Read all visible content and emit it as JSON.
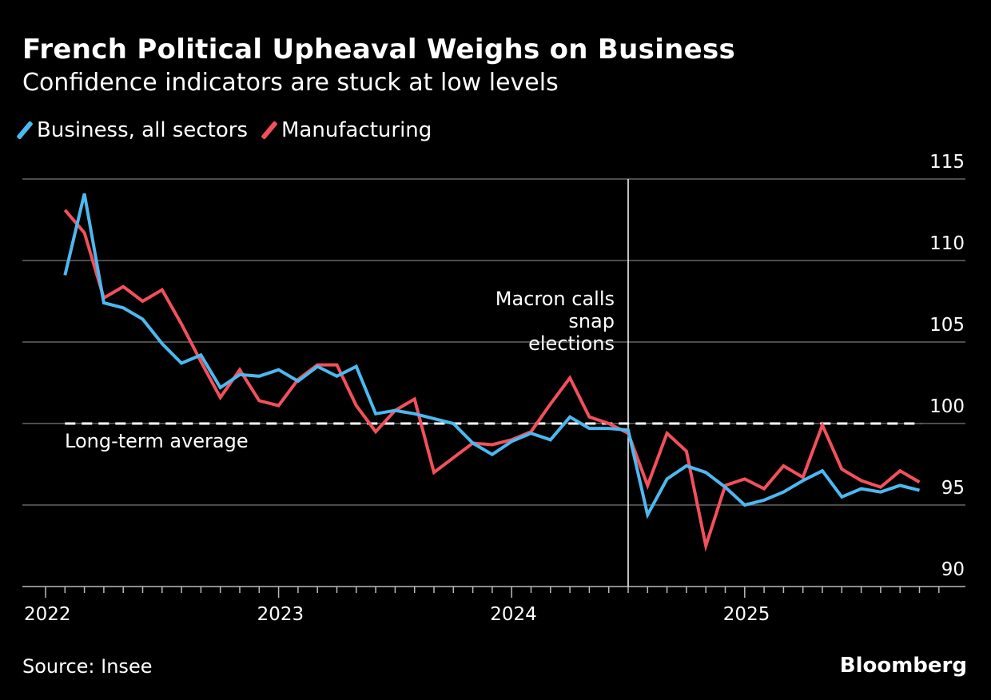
{
  "chart_data": {
    "type": "line",
    "title": "French Political Upheaval Weighs on Business",
    "subtitle": "Confidence indicators are stuck at low levels",
    "x": [
      "2022-02",
      "2022-03",
      "2022-04",
      "2022-05",
      "2022-06",
      "2022-07",
      "2022-08",
      "2022-09",
      "2022-10",
      "2022-11",
      "2022-12",
      "2023-01",
      "2023-02",
      "2023-03",
      "2023-04",
      "2023-05",
      "2023-06",
      "2023-07",
      "2023-08",
      "2023-09",
      "2023-10",
      "2023-11",
      "2023-12",
      "2024-01",
      "2024-02",
      "2024-03",
      "2024-04",
      "2024-05",
      "2024-06",
      "2024-07",
      "2024-08",
      "2024-09",
      "2024-10",
      "2024-11",
      "2024-12",
      "2025-01",
      "2025-02",
      "2025-03",
      "2025-04",
      "2025-05",
      "2025-06",
      "2025-07",
      "2025-08",
      "2025-09",
      "2025-10"
    ],
    "series": [
      {
        "name": "Business, all sectors",
        "color": "#4db8f0",
        "values": [
          109.1,
          114.1,
          107.4,
          107.1,
          106.4,
          104.9,
          103.7,
          104.2,
          102.2,
          103.0,
          102.9,
          103.3,
          102.6,
          103.5,
          102.9,
          103.5,
          100.6,
          100.8,
          100.6,
          100.3,
          100.0,
          98.8,
          98.1,
          98.9,
          99.4,
          99.0,
          100.4,
          99.7,
          99.7,
          99.6,
          94.4,
          96.6,
          97.4,
          97.0,
          96.1,
          95.0,
          95.3,
          95.8,
          96.5,
          97.1,
          95.5,
          96.0,
          95.8,
          96.2,
          95.9
        ]
      },
      {
        "name": "Manufacturing",
        "color": "#f2505a",
        "values": [
          113.1,
          111.7,
          107.7,
          108.4,
          107.5,
          108.2,
          106.1,
          103.8,
          101.6,
          103.3,
          101.4,
          101.1,
          102.7,
          103.6,
          103.6,
          101.1,
          99.5,
          100.8,
          101.5,
          97.0,
          97.9,
          98.8,
          98.7,
          99.0,
          99.5,
          101.2,
          102.8,
          100.4,
          100.0,
          99.4,
          96.2,
          99.4,
          98.3,
          92.5,
          96.2,
          96.6,
          96.0,
          97.4,
          96.7,
          99.9,
          97.2,
          96.5,
          96.1,
          97.1,
          96.4
        ]
      }
    ],
    "ylim": [
      90,
      115
    ],
    "yticks": [
      "115",
      "110",
      "105",
      "100",
      "95",
      "90"
    ],
    "xticks": [
      "2022",
      "2023",
      "2024",
      "2025"
    ],
    "y_axis_side": "right",
    "grid": true,
    "legend_placement": "top-left",
    "reference_line": {
      "value": 100,
      "label": "Long-term average",
      "style": "dashed",
      "color": "#ffffff"
    },
    "event_marker": {
      "date": "2024-07",
      "label_lines": [
        "Macron calls",
        "snap",
        "elections"
      ]
    },
    "source": "Source: Insee",
    "logo": "Bloomberg"
  }
}
